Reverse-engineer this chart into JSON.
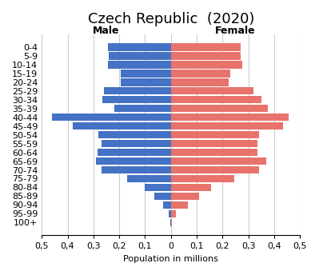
{
  "title": "Czech Republic  (2020)",
  "xlabel": "Population in millions",
  "male_label": "Male",
  "female_label": "Female",
  "age_groups": [
    "100+",
    "95-99",
    "90-94",
    "85-89",
    "80-84",
    "75-79",
    "70-74",
    "65-69",
    "60-64",
    "55-59",
    "50-54",
    "45-49",
    "40-44",
    "35-39",
    "30-34",
    "25-29",
    "20-24",
    "15-19",
    "10-14",
    "5-9",
    "0-4"
  ],
  "male_values": [
    0.002,
    0.01,
    0.03,
    0.065,
    0.1,
    0.17,
    0.27,
    0.29,
    0.285,
    0.27,
    0.28,
    0.38,
    0.46,
    0.22,
    0.265,
    0.26,
    0.195,
    0.195,
    0.245,
    0.24,
    0.245
  ],
  "female_values": [
    0.005,
    0.02,
    0.065,
    0.11,
    0.155,
    0.245,
    0.34,
    0.37,
    0.335,
    0.335,
    0.34,
    0.435,
    0.455,
    0.375,
    0.35,
    0.32,
    0.225,
    0.23,
    0.275,
    0.27,
    0.27
  ],
  "male_color": "#4472C4",
  "female_color": "#E8736C",
  "bar_height": 0.85,
  "xlim": 0.5,
  "bg_color": "#ffffff",
  "grid_color": "#cccccc",
  "title_fontsize": 13,
  "label_fontsize": 9,
  "tick_fontsize": 8,
  "axis_label_fontsize": 8
}
